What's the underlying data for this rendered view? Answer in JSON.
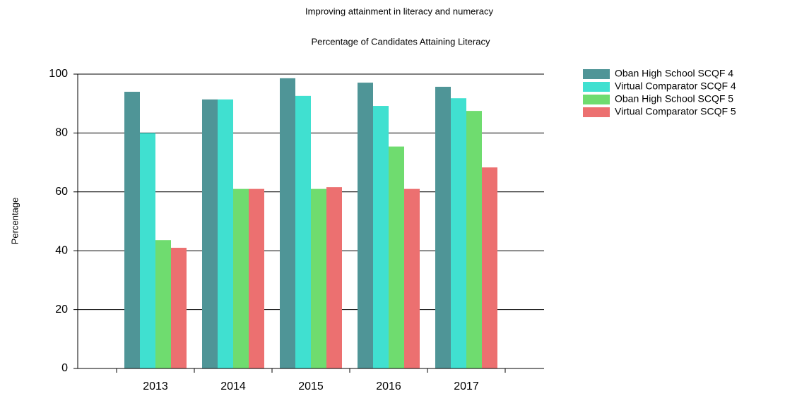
{
  "chart_data": {
    "type": "bar",
    "title": "Improving attainment in literacy and numeracy",
    "subtitle": "Percentage of Candidates Attaining Literacy",
    "y_label": "Percentage",
    "categories": [
      "2013",
      "2014",
      "2015",
      "2016",
      "2017"
    ],
    "series": [
      {
        "name": "Oban High School SCQF 4",
        "color": "#4f9597",
        "values": [
          94,
          91.4,
          98.6,
          97.1,
          95.7
        ]
      },
      {
        "name": "Virtual Comparator SCQF 4",
        "color": "#40e0d0",
        "values": [
          80,
          91.4,
          92.6,
          89.2,
          91.8
        ]
      },
      {
        "name": "Oban High School SCQF 5",
        "color": "#6fdc6f",
        "values": [
          43.6,
          61,
          61,
          75.4,
          87.5
        ]
      },
      {
        "name": "Virtual Comparator SCQF 5",
        "color": "#ec7070",
        "values": [
          41,
          61,
          61.6,
          61,
          68.3
        ]
      }
    ],
    "ylim": [
      0,
      100
    ],
    "yticks": [
      0,
      20,
      40,
      60,
      80,
      100
    ],
    "grid": true,
    "legend": "right"
  }
}
